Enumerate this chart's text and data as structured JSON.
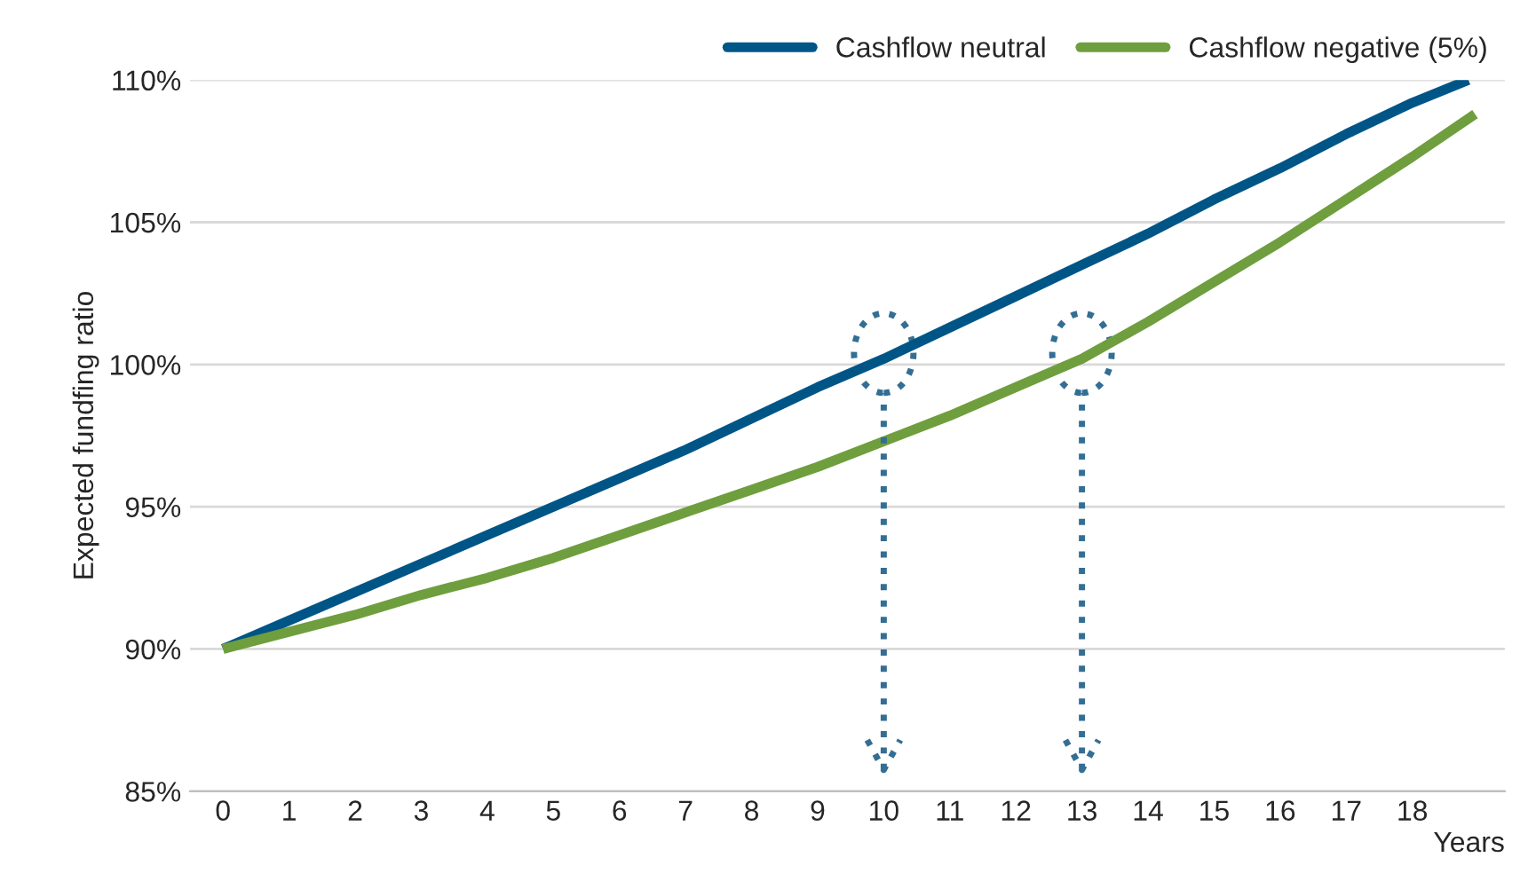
{
  "chart_data": {
    "type": "line",
    "xlabel": "Years",
    "ylabel": "Expected fundfing ratio",
    "xlim": [
      -0.5,
      19.4
    ],
    "xticks": [
      0,
      1,
      2,
      3,
      4,
      5,
      6,
      7,
      8,
      9,
      10,
      11,
      12,
      13,
      14,
      15,
      16,
      17,
      18
    ],
    "ylim": [
      85,
      110
    ],
    "yticks": [
      {
        "value": 85,
        "label": "85%"
      },
      {
        "value": 90,
        "label": "90%"
      },
      {
        "value": 95,
        "label": "95%"
      },
      {
        "value": 100,
        "label": "100%"
      },
      {
        "value": 105,
        "label": "105%"
      },
      {
        "value": 110,
        "label": "110%"
      }
    ],
    "grid": "y",
    "legend": "top right",
    "marker": "none",
    "line_style": "solid",
    "series": [
      {
        "name": "Cashflow neutral",
        "color": "#005587",
        "x": [
          0,
          1,
          2,
          3,
          4,
          5,
          6,
          7,
          8,
          9,
          10,
          11,
          12,
          13,
          14,
          15,
          16,
          17,
          18,
          18.85
        ],
        "values": [
          90,
          91.0,
          92.0,
          93.0,
          94.0,
          95.0,
          96.0,
          97.0,
          98.1,
          99.2,
          100.2,
          101.3,
          102.4,
          103.5,
          104.6,
          105.8,
          106.9,
          108.1,
          109.2,
          110
        ]
      },
      {
        "name": "Cashflow negative (5%)",
        "color": "#6f9e3e",
        "x": [
          0,
          1,
          2,
          3,
          4,
          5,
          6,
          7,
          8,
          9,
          10,
          11,
          12,
          13,
          14,
          15,
          16,
          17,
          18,
          18.95
        ],
        "values": [
          90,
          90.6,
          91.2,
          91.9,
          92.5,
          93.2,
          94.0,
          94.8,
          95.6,
          96.4,
          97.3,
          98.2,
          99.2,
          100.2,
          101.5,
          102.9,
          104.3,
          105.8,
          107.3,
          108.8
        ]
      }
    ],
    "ref_lines": [
      {
        "axis": "x",
        "value": 10,
        "color": "#336e94",
        "line_style": "dotted"
      },
      {
        "axis": "x",
        "value": 13,
        "color": "#336e94",
        "line_style": "dotted"
      }
    ]
  }
}
